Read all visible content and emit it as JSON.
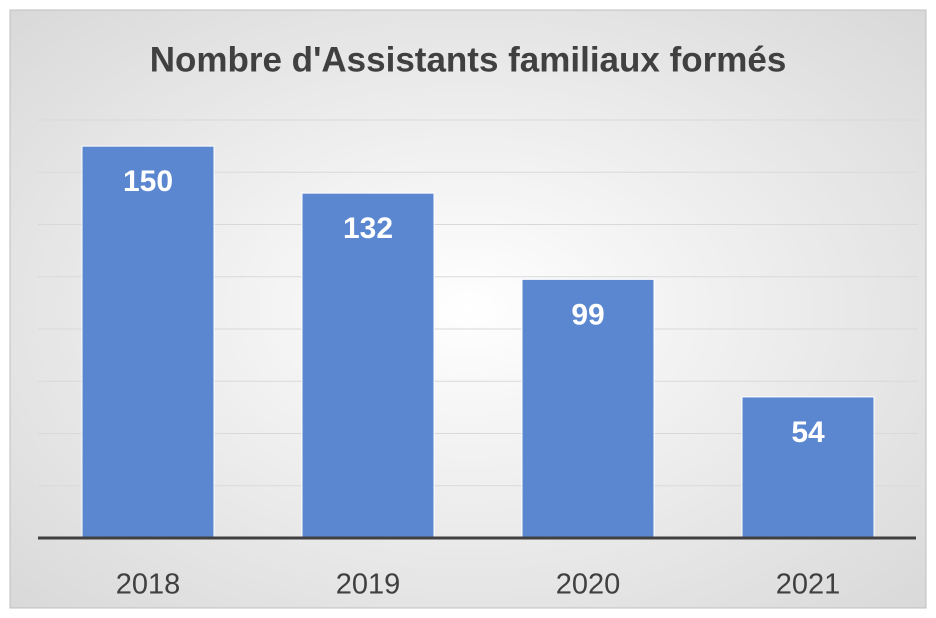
{
  "chart_data": {
    "type": "bar",
    "title": "Nombre d'Assistants familiaux formés",
    "categories": [
      "2018",
      "2019",
      "2020",
      "2021"
    ],
    "values": [
      150,
      132,
      99,
      54
    ],
    "color": "#5b87d1",
    "ylim": [
      0,
      160
    ],
    "yticks": [
      0,
      20,
      40,
      60,
      80,
      100,
      120,
      140,
      160
    ],
    "grid": true
  }
}
